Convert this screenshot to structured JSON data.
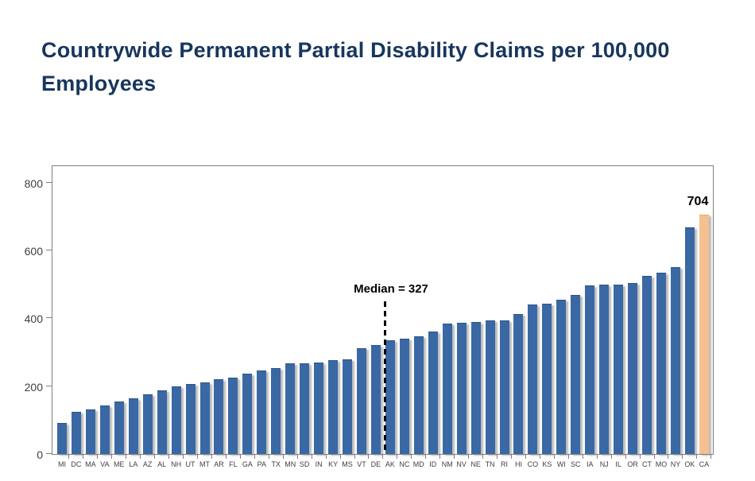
{
  "slide": {
    "title": "Countrywide Permanent Partial Disability Claims per 100,000 Employees"
  },
  "chart_data": {
    "type": "bar",
    "title": "Countrywide Permanent Partial Disability Claims per 100,000 Employees",
    "xlabel": "",
    "ylabel": "",
    "ylim": [
      0,
      849
    ],
    "yticks": [
      0,
      200,
      400,
      600,
      800
    ],
    "grid": false,
    "legend": "none",
    "sorted": "ascending",
    "bar_color": "#3A68A4",
    "highlight_color": "#F6BF90",
    "highlight_category": "CA",
    "categories": [
      "MI",
      "DC",
      "MA",
      "VA",
      "ME",
      "LA",
      "AZ",
      "AL",
      "NH",
      "UT",
      "MT",
      "AR",
      "FL",
      "GA",
      "PA",
      "TX",
      "MN",
      "SD",
      "IN",
      "KY",
      "MS",
      "VT",
      "DE",
      "AK",
      "NC",
      "MD",
      "ID",
      "NM",
      "NV",
      "NE",
      "TN",
      "RI",
      "HI",
      "CO",
      "KS",
      "WI",
      "SC",
      "IA",
      "NJ",
      "IL",
      "OR",
      "CT",
      "MO",
      "NY",
      "OK",
      "CA"
    ],
    "values": [
      90,
      122,
      128,
      140,
      153,
      163,
      173,
      186,
      197,
      203,
      209,
      219,
      222,
      235,
      243,
      252,
      265,
      266,
      268,
      275,
      277,
      310,
      320,
      334,
      338,
      345,
      360,
      383,
      384,
      386,
      391,
      392,
      410,
      438,
      442,
      452,
      466,
      496,
      497,
      498,
      503,
      522,
      533,
      548,
      667,
      704
    ],
    "median_annotation": {
      "text": "Median = 327",
      "value": 327,
      "line_between": [
        "DE",
        "AK"
      ]
    },
    "max_value_label": {
      "text": "704",
      "category": "CA"
    }
  }
}
